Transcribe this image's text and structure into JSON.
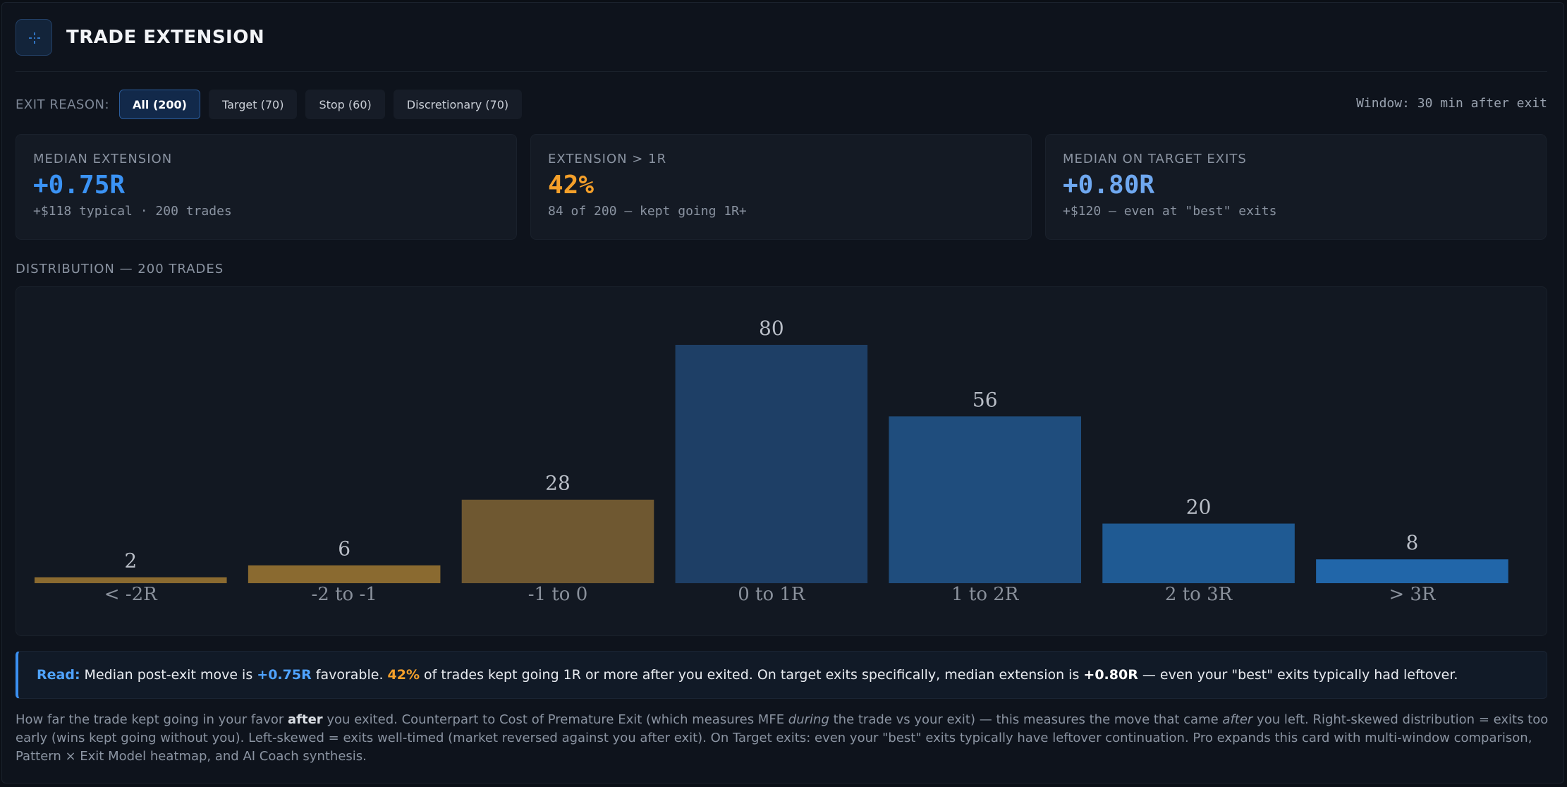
{
  "header": {
    "title": "TRADE EXTENSION",
    "icon": "crosshair-icon"
  },
  "filters": {
    "label": "EXIT REASON:",
    "options": [
      {
        "label": "All (200)",
        "active": true
      },
      {
        "label": "Target (70)",
        "active": false
      },
      {
        "label": "Stop (60)",
        "active": false
      },
      {
        "label": "Discretionary (70)",
        "active": false
      }
    ],
    "window": "Window: 30 min after exit"
  },
  "stats": [
    {
      "label": "MEDIAN EXTENSION",
      "value": "+0.75R",
      "sub": "+$118 typical · 200 trades",
      "color": "#3b93f5"
    },
    {
      "label": "EXTENSION > 1R",
      "value": "42%",
      "sub": "84 of 200 — kept going 1R+",
      "color": "#f5a02a"
    },
    {
      "label": "MEDIAN ON TARGET EXITS",
      "value": "+0.80R",
      "sub": "+$120 — even at \"best\" exits",
      "color": "#6fa8f0"
    }
  ],
  "distribution": {
    "label": "DISTRIBUTION — 200 TRADES"
  },
  "chart_data": {
    "type": "bar",
    "categories": [
      "< -2R",
      "-2 to -1",
      "-1 to 0",
      "0 to 1R",
      "1 to 2R",
      "2 to 3R",
      "> 3R"
    ],
    "values": [
      2,
      6,
      28,
      80,
      56,
      20,
      8
    ],
    "colors": [
      "#8a6a30",
      "#8a6a30",
      "#6f5831",
      "#1e3f66",
      "#1f4d7d",
      "#1f5a93",
      "#2166a9"
    ],
    "ylim": [
      0,
      80
    ],
    "title": "",
    "xlabel": "",
    "ylabel": ""
  },
  "read": {
    "label": "Read:",
    "t1": "Median post-exit move is ",
    "v1": "+0.75R",
    "t2": " favorable. ",
    "v2": "42%",
    "t3": " of trades kept going 1R or more after you exited. On target exits specifically, median extension is ",
    "v3": "+0.80R",
    "t4": " — even your \"best\" exits typically had leftover."
  },
  "footer": {
    "p1": "How far the trade kept going in your favor ",
    "b1": "after",
    "p2": " you exited. Counterpart to Cost of Premature Exit (which measures MFE ",
    "i1": "during",
    "p3": " the trade vs your exit) — this measures the move that came ",
    "i2": "after",
    "p4": " you left. Right-skewed distribution = exits too early (wins kept going without you). Left-skewed = exits well-timed (market reversed against you after exit). On Target exits: even your \"best\" exits typically have leftover continuation. Pro expands this card with multi-window comparison, Pattern × Exit Model heatmap, and AI Coach synthesis."
  }
}
